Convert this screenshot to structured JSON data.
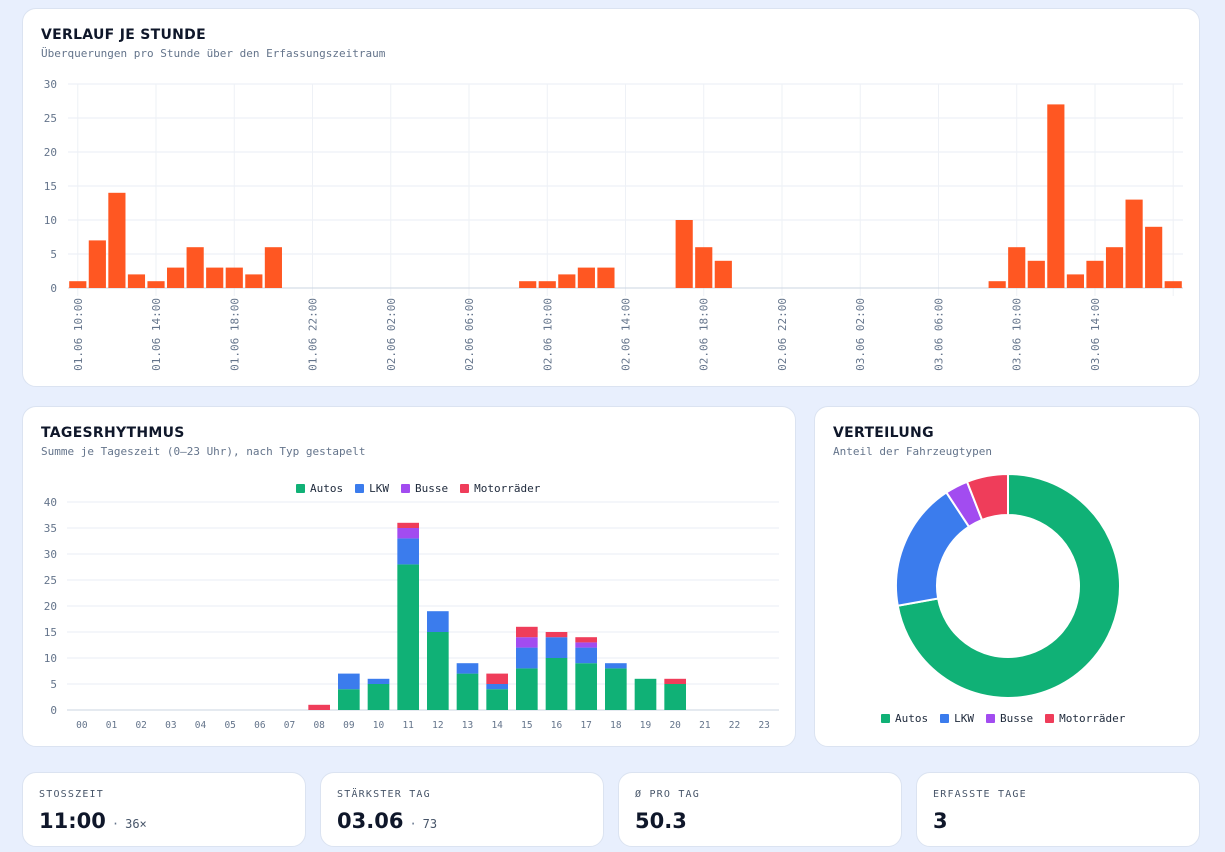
{
  "colors": {
    "hourly": "#ff5722",
    "autos": "#10b176",
    "lkw": "#3b7ced",
    "busse": "#a24cf0",
    "motorraeder": "#ef3d5a"
  },
  "panels": {
    "hourly": {
      "title": "VERLAUF JE STUNDE",
      "subtitle": "Überquerungen pro Stunde über den Erfassungszeitraum"
    },
    "daily": {
      "title": "TAGESRHYTHMUS",
      "subtitle": "Summe je Tageszeit (0–23 Uhr), nach Typ gestapelt"
    },
    "distribution": {
      "title": "VERTEILUNG",
      "subtitle": "Anteil der Fahrzeugtypen"
    }
  },
  "legend": [
    "Autos",
    "LKW",
    "Busse",
    "Motorräder"
  ],
  "stats": [
    {
      "label": "STOSSZEIT",
      "value": "11:00",
      "sep": "·",
      "extra": "36×"
    },
    {
      "label": "STÄRKSTER TAG",
      "value": "03.06",
      "sep": "·",
      "extra": "73"
    },
    {
      "label": "Ø PRO TAG",
      "value": "50.3"
    },
    {
      "label": "ERFASSTE TAGE",
      "value": "3"
    }
  ],
  "chart_data": [
    {
      "type": "bar",
      "ylim": [
        0,
        30
      ],
      "yticks": [
        0,
        5,
        10,
        15,
        20,
        25,
        30
      ],
      "x_tick_labels": [
        "01.06 10:00",
        "01.06 14:00",
        "01.06 18:00",
        "01.06 22:00",
        "02.06 02:00",
        "02.06 06:00",
        "02.06 10:00",
        "02.06 14:00",
        "02.06 18:00",
        "02.06 22:00",
        "03.06 02:00",
        "03.06 06:00",
        "03.06 10:00",
        "03.06 14:00"
      ],
      "x_tick_every": 4,
      "values": [
        1,
        7,
        14,
        2,
        1,
        3,
        6,
        3,
        3,
        2,
        6,
        0,
        0,
        0,
        0,
        0,
        0,
        0,
        0,
        0,
        0,
        0,
        0,
        1,
        1,
        2,
        3,
        3,
        0,
        0,
        0,
        10,
        6,
        4,
        0,
        0,
        0,
        0,
        0,
        0,
        0,
        0,
        0,
        0,
        0,
        0,
        0,
        1,
        6,
        4,
        27,
        2,
        4,
        6,
        13,
        9,
        1
      ]
    },
    {
      "type": "bar",
      "stacked": true,
      "legend_position": "top",
      "ylim": [
        0,
        40
      ],
      "yticks": [
        0,
        5,
        10,
        15,
        20,
        25,
        30,
        35,
        40
      ],
      "categories": [
        "00",
        "01",
        "02",
        "03",
        "04",
        "05",
        "06",
        "07",
        "08",
        "09",
        "10",
        "11",
        "12",
        "13",
        "14",
        "15",
        "16",
        "17",
        "18",
        "19",
        "20",
        "21",
        "22",
        "23"
      ],
      "series": [
        {
          "name": "Autos",
          "values": [
            0,
            0,
            0,
            0,
            0,
            0,
            0,
            0,
            0,
            4,
            5,
            28,
            15,
            7,
            4,
            8,
            10,
            9,
            8,
            6,
            5,
            0,
            0,
            0
          ]
        },
        {
          "name": "LKW",
          "values": [
            0,
            0,
            0,
            0,
            0,
            0,
            0,
            0,
            0,
            3,
            1,
            5,
            4,
            2,
            1,
            4,
            4,
            3,
            1,
            0,
            0,
            0,
            0,
            0
          ]
        },
        {
          "name": "Busse",
          "values": [
            0,
            0,
            0,
            0,
            0,
            0,
            0,
            0,
            0,
            0,
            0,
            2,
            0,
            0,
            0,
            2,
            0,
            1,
            0,
            0,
            0,
            0,
            0,
            0
          ]
        },
        {
          "name": "Motorräder",
          "values": [
            0,
            0,
            0,
            0,
            0,
            0,
            0,
            0,
            1,
            0,
            0,
            1,
            0,
            0,
            2,
            2,
            1,
            1,
            0,
            0,
            1,
            0,
            0,
            0
          ]
        }
      ]
    },
    {
      "type": "pie",
      "donut": true,
      "legend_position": "bottom",
      "labels": [
        "Autos",
        "LKW",
        "Busse",
        "Motorräder"
      ],
      "values": [
        109,
        28,
        5,
        9
      ]
    }
  ]
}
